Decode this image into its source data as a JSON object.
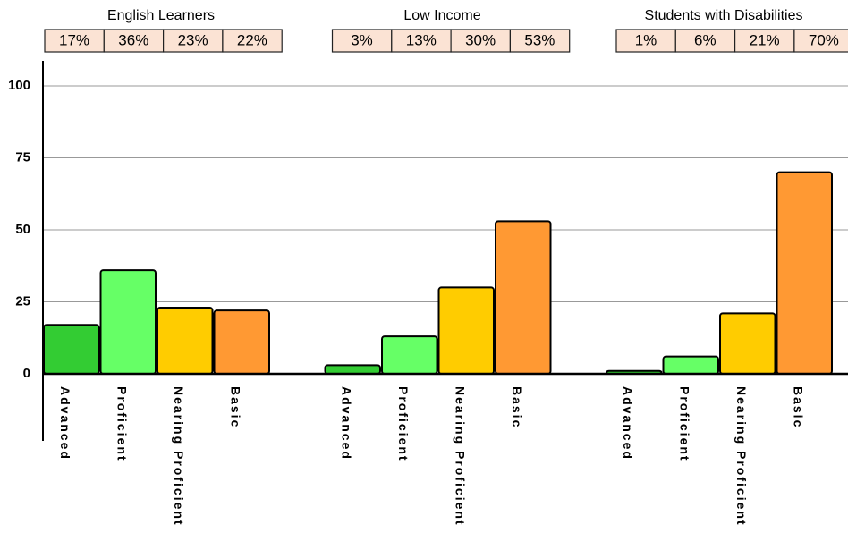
{
  "chart_data": {
    "type": "bar",
    "categories": [
      "Advanced",
      "Proficient",
      "Nearing Proficient",
      "Basic"
    ],
    "colors": [
      "#33cc33",
      "#66ff66",
      "#ffcc00",
      "#ff9933"
    ],
    "groups": [
      {
        "name": "English Learners",
        "values": [
          17,
          36,
          23,
          22
        ],
        "value_labels": [
          "17%",
          "36%",
          "23%",
          "22%"
        ]
      },
      {
        "name": "Low Income",
        "values": [
          3,
          13,
          30,
          53
        ],
        "value_labels": [
          "3%",
          "13%",
          "30%",
          "53%"
        ]
      },
      {
        "name": "Students with Disabilities",
        "values": [
          1,
          6,
          21,
          70
        ],
        "value_labels": [
          "1%",
          "6%",
          "21%",
          "70%"
        ]
      }
    ],
    "ylim": [
      0,
      100
    ],
    "yticks": [
      0,
      25,
      50,
      75,
      100
    ],
    "grid": true
  }
}
